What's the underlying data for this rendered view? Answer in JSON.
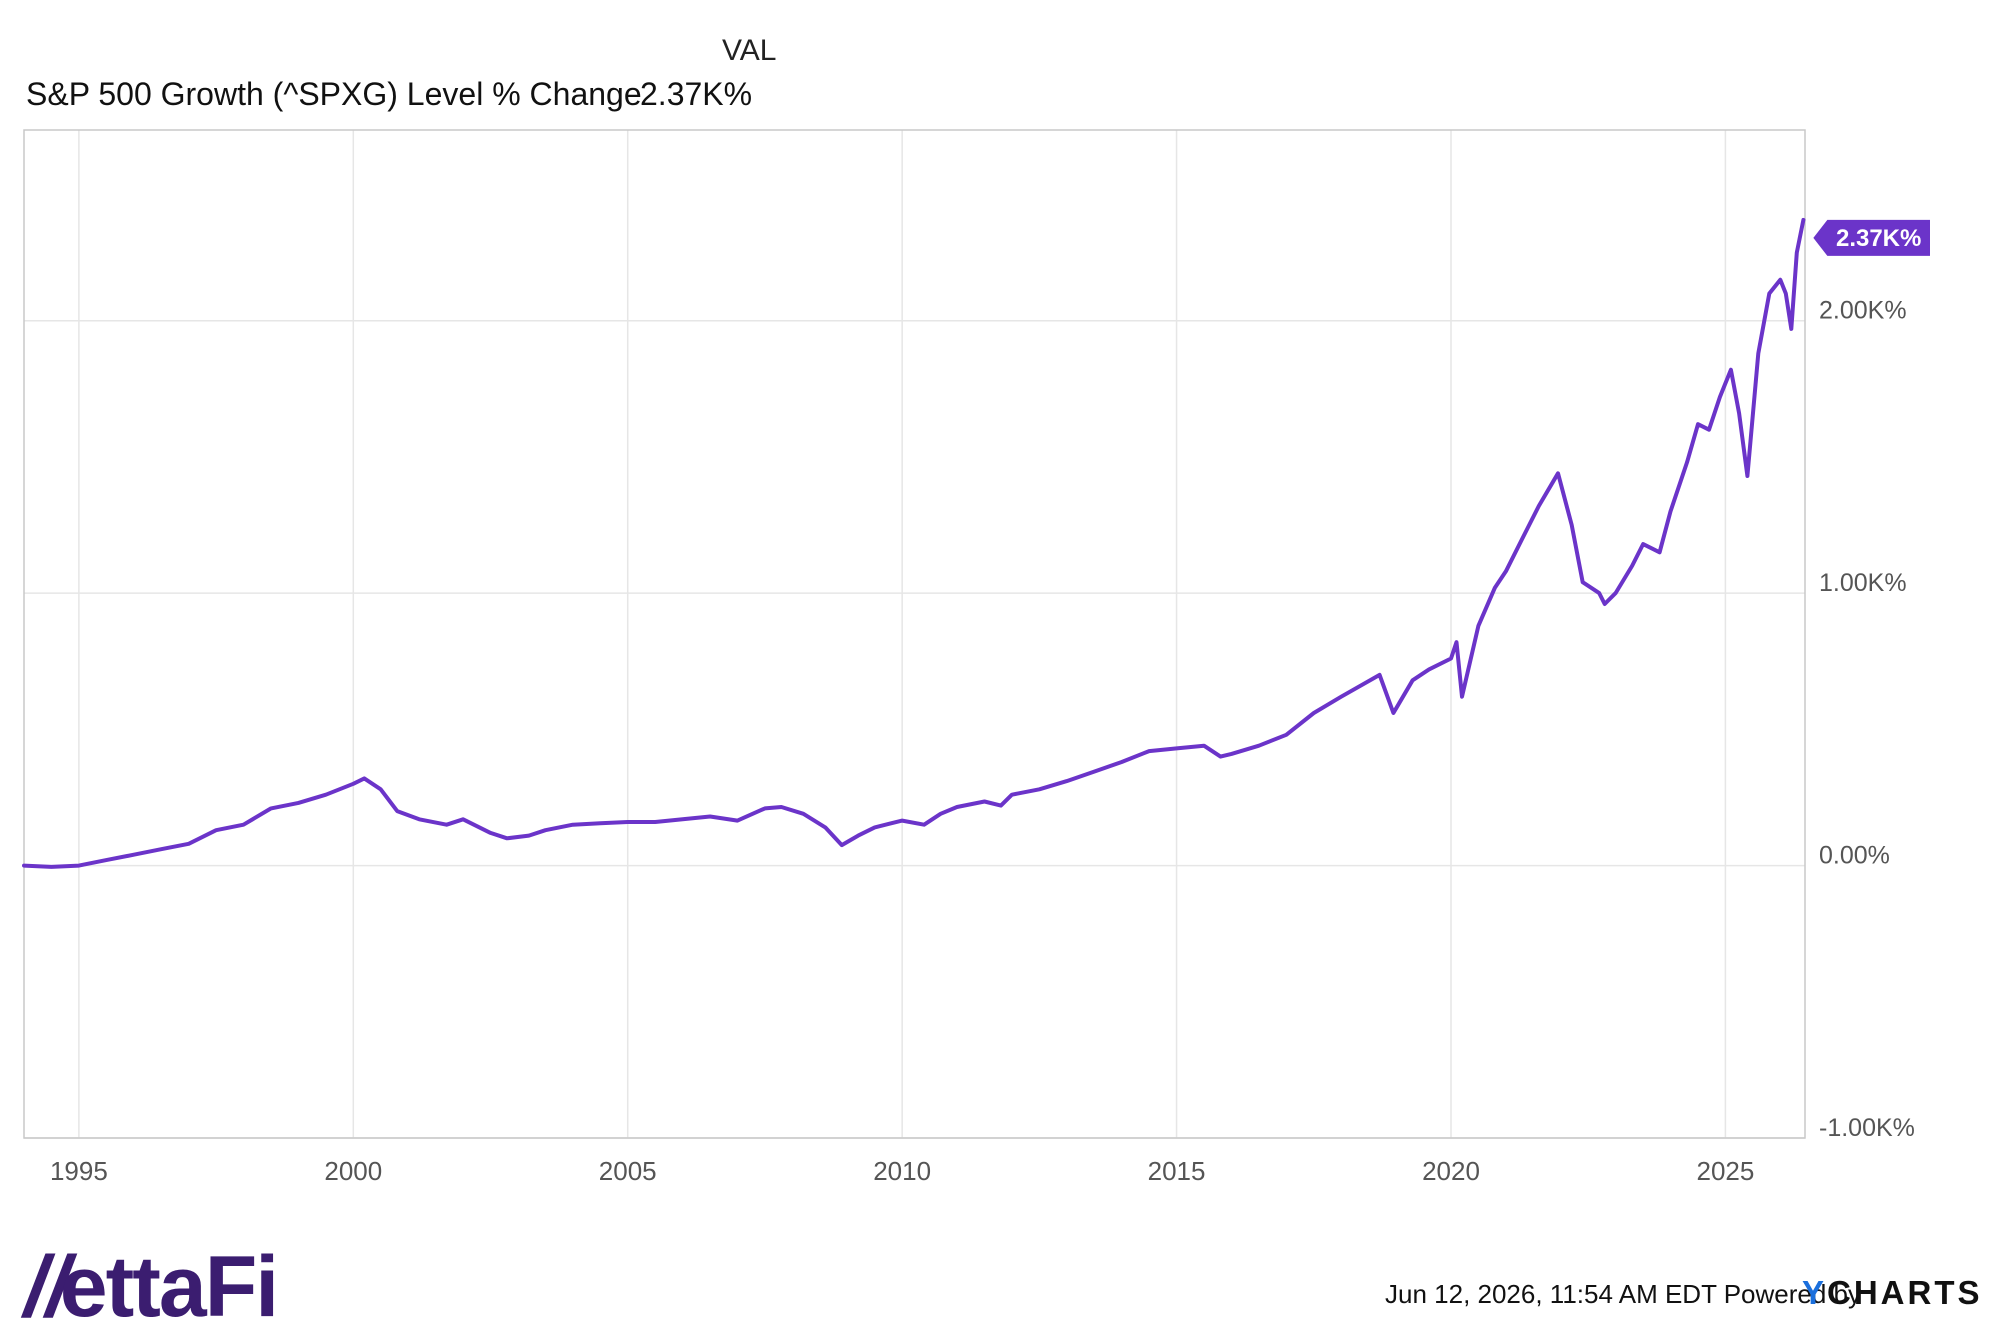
{
  "legend": {
    "column_header": "VAL",
    "series_label": "S&P 500 Growth (^SPXG) Level % Change",
    "series_value": "2.37K%"
  },
  "footer": {
    "timestamp": "Jun 12, 2026, 11:54 AM EDT",
    "powered_by": "Powered by",
    "ycharts_y": "Y",
    "ycharts_rest": "CHARTS",
    "brand": "VettaFi"
  },
  "colors": {
    "series": "#6b34c9",
    "grid": "#e6e6e6",
    "axis": "#999999"
  },
  "chart_data": {
    "type": "line",
    "title": "",
    "xlabel": "",
    "ylabel": "",
    "x_range": [
      1994.0,
      2026.45
    ],
    "ylim": [
      -1000,
      2700
    ],
    "x_ticks": [
      1995,
      2000,
      2005,
      2010,
      2015,
      2020,
      2025
    ],
    "x_tick_labels": [
      "1995",
      "2000",
      "2005",
      "2010",
      "2015",
      "2020",
      "2025"
    ],
    "y_ticks": [
      -1000,
      0,
      1000,
      2000
    ],
    "y_tick_labels": [
      "-1.00K%",
      "0.00%",
      "1.00K%",
      "2.00K%"
    ],
    "grid": true,
    "last_value_label": "2.37K%",
    "series": [
      {
        "name": "S&P 500 Growth (^SPXG) Level % Change",
        "x": [
          1994.0,
          1994.5,
          1995.0,
          1995.5,
          1996.0,
          1996.5,
          1997.0,
          1997.5,
          1998.0,
          1998.5,
          1999.0,
          1999.5,
          2000.0,
          2000.2,
          2000.5,
          2000.8,
          2001.2,
          2001.7,
          2002.0,
          2002.5,
          2002.8,
          2003.2,
          2003.5,
          2004.0,
          2004.5,
          2005.0,
          2005.5,
          2006.0,
          2006.5,
          2007.0,
          2007.5,
          2007.8,
          2008.2,
          2008.6,
          2008.9,
          2009.2,
          2009.5,
          2010.0,
          2010.4,
          2010.7,
          2011.0,
          2011.5,
          2011.8,
          2012.0,
          2012.5,
          2013.0,
          2013.5,
          2014.0,
          2014.5,
          2015.0,
          2015.5,
          2015.8,
          2016.0,
          2016.5,
          2017.0,
          2017.5,
          2018.0,
          2018.7,
          2018.95,
          2019.3,
          2019.6,
          2020.0,
          2020.1,
          2020.2,
          2020.5,
          2020.8,
          2021.0,
          2021.3,
          2021.6,
          2021.95,
          2022.2,
          2022.4,
          2022.7,
          2022.8,
          2023.0,
          2023.3,
          2023.5,
          2023.8,
          2024.0,
          2024.3,
          2024.5,
          2024.7,
          2024.9,
          2025.1,
          2025.25,
          2025.4,
          2025.6,
          2025.8,
          2026.0,
          2026.1,
          2026.2,
          2026.3,
          2026.42
        ],
        "values": [
          0,
          -5,
          0,
          20,
          40,
          60,
          80,
          130,
          150,
          210,
          230,
          260,
          300,
          320,
          280,
          200,
          170,
          150,
          170,
          120,
          100,
          110,
          130,
          150,
          155,
          160,
          160,
          170,
          180,
          165,
          210,
          215,
          190,
          140,
          75,
          110,
          140,
          165,
          150,
          190,
          215,
          235,
          220,
          260,
          280,
          310,
          345,
          380,
          420,
          430,
          440,
          400,
          410,
          440,
          480,
          560,
          620,
          700,
          560,
          680,
          720,
          760,
          820,
          620,
          880,
          1020,
          1080,
          1200,
          1320,
          1440,
          1250,
          1040,
          1000,
          960,
          1000,
          1100,
          1180,
          1150,
          1300,
          1480,
          1620,
          1600,
          1720,
          1820,
          1660,
          1430,
          1880,
          2100,
          2150,
          2100,
          1970,
          2250,
          2370
        ]
      }
    ]
  }
}
